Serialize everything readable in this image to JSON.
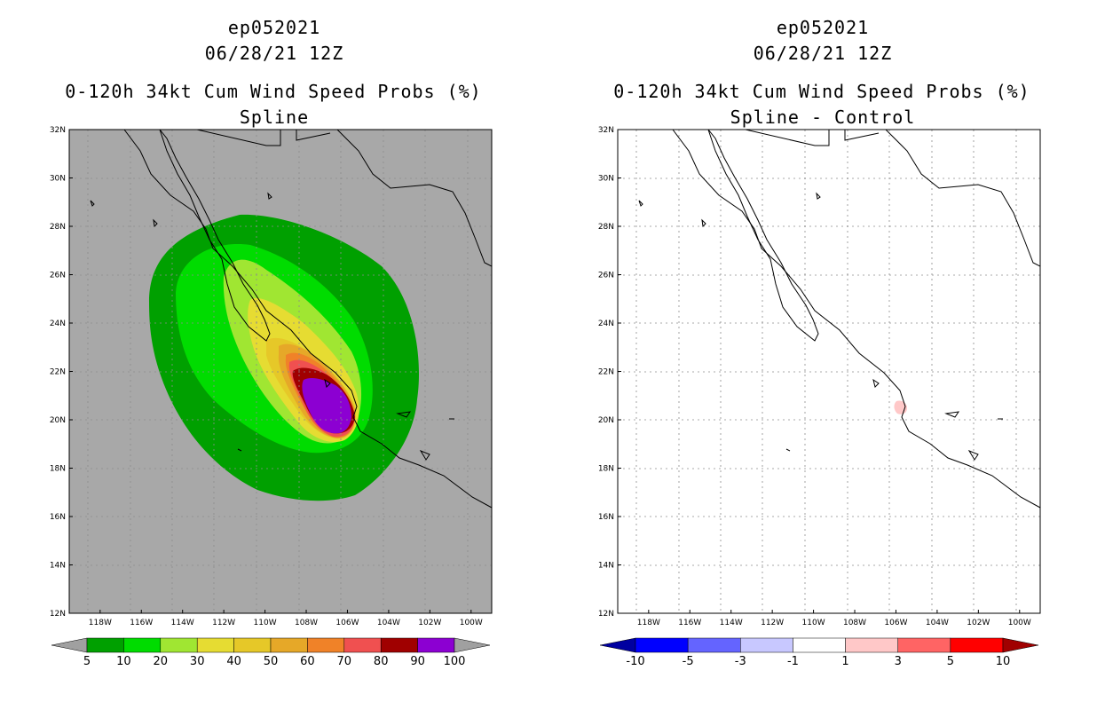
{
  "left_panel": {
    "title_lines": [
      "ep052021",
      "06/28/21 12Z",
      "0-120h 34kt Cum Wind Speed Probs (%)",
      "Spline"
    ],
    "colorbar": {
      "labels": [
        "5",
        "10",
        "20",
        "30",
        "40",
        "50",
        "60",
        "70",
        "80",
        "90",
        "100"
      ],
      "colors": [
        "#a0a0a0",
        "#00a000",
        "#00dc00",
        "#a0e632",
        "#e6dc32",
        "#e6c828",
        "#e6a828",
        "#f08228",
        "#f05050",
        "#a00000",
        "#8c00d2",
        "#a0a0a0"
      ]
    }
  },
  "right_panel": {
    "title_lines": [
      "ep052021",
      "06/28/21 12Z",
      "0-120h 34kt Cum Wind Speed Probs (%)",
      "Spline - Control"
    ],
    "colorbar": {
      "labels": [
        "-10",
        "-5",
        "-3",
        "-1",
        "1",
        "3",
        "5",
        "10"
      ],
      "colors": [
        "#0000a0",
        "#0000ff",
        "#6464ff",
        "#c8c8ff",
        "#ffffff",
        "#ffc8c8",
        "#ff6464",
        "#ff0000",
        "#a00000"
      ]
    }
  },
  "axes": {
    "lat_labels": [
      "32N",
      "30N",
      "28N",
      "26N",
      "24N",
      "22N",
      "20N",
      "18N",
      "16N",
      "14N",
      "12N"
    ],
    "lon_labels": [
      "118W",
      "116W",
      "114W",
      "112W",
      "110W",
      "108W",
      "106W",
      "104W",
      "102W",
      "100W"
    ],
    "lat_range": [
      12,
      32
    ],
    "lon_range": [
      -119.5,
      -99
    ]
  },
  "colors": {
    "map_bg_left": "#a8a8a8",
    "map_bg_right": "#ffffff"
  }
}
